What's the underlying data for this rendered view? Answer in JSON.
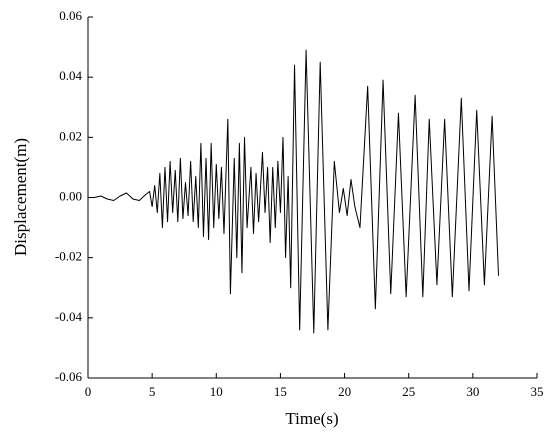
{
  "chart_data": {
    "type": "line",
    "xlabel": "Time(s)",
    "ylabel": "Displacement(m)",
    "xlim": [
      0,
      35
    ],
    "xticks": [
      0,
      5,
      10,
      15,
      20,
      25,
      30,
      35
    ],
    "ylim": [
      -0.06,
      0.06
    ],
    "yticks": [
      -0.06,
      -0.04,
      -0.02,
      {
        "value": 0,
        "label": "0.00"
      },
      0.02,
      0.04,
      0.06
    ],
    "series": [
      {
        "color": "#000000",
        "x": [
          0,
          0.5,
          1,
          1.5,
          2,
          2.5,
          3,
          3.5,
          4,
          4.5,
          4.8,
          5.0,
          5.2,
          5.4,
          5.6,
          5.8,
          6.0,
          6.2,
          6.4,
          6.6,
          6.8,
          7.0,
          7.2,
          7.4,
          7.6,
          7.8,
          8.0,
          8.2,
          8.4,
          8.6,
          8.8,
          9.0,
          9.2,
          9.4,
          9.6,
          9.8,
          10.0,
          10.2,
          10.4,
          10.6,
          10.9,
          11.1,
          11.4,
          11.6,
          11.8,
          12.0,
          12.2,
          12.4,
          12.7,
          12.9,
          13.1,
          13.3,
          13.6,
          13.8,
          14.0,
          14.2,
          14.4,
          14.6,
          14.8,
          15.0,
          15.2,
          15.4,
          15.6,
          15.8,
          16.1,
          16.5,
          17.0,
          17.6,
          18.1,
          18.7,
          19.2,
          19.6,
          19.9,
          20.2,
          20.5,
          20.8,
          21.2,
          21.8,
          22.4,
          23.0,
          23.6,
          24.2,
          24.8,
          25.5,
          26.1,
          26.6,
          27.2,
          27.8,
          28.4,
          29.1,
          29.7,
          30.3,
          30.9,
          31.5,
          32.0
        ],
        "values": [
          0,
          0,
          0.0005,
          -0.0005,
          -0.001,
          0.0005,
          0.0015,
          -0.0005,
          -0.001,
          0.001,
          0.002,
          -0.003,
          0.004,
          -0.005,
          0.008,
          -0.01,
          0.01,
          -0.008,
          0.012,
          -0.005,
          0.009,
          -0.008,
          0.013,
          -0.007,
          0.005,
          -0.006,
          0.012,
          -0.008,
          0.007,
          -0.01,
          0.018,
          -0.013,
          0.013,
          -0.014,
          0.018,
          -0.01,
          0.011,
          -0.007,
          0.01,
          -0.012,
          0.026,
          -0.032,
          0.013,
          -0.02,
          0.018,
          -0.025,
          0.02,
          -0.01,
          0.01,
          -0.012,
          0.008,
          -0.008,
          0.015,
          -0.005,
          0.01,
          -0.015,
          0.01,
          -0.01,
          0.012,
          -0.005,
          0.02,
          -0.02,
          0.007,
          -0.03,
          0.044,
          -0.044,
          0.049,
          -0.045,
          0.045,
          -0.044,
          0.012,
          -0.005,
          0.003,
          -0.006,
          0.006,
          -0.003,
          -0.01,
          0.037,
          -0.037,
          0.039,
          -0.032,
          0.028,
          -0.033,
          0.034,
          -0.033,
          0.026,
          -0.029,
          0.026,
          -0.033,
          0.033,
          -0.031,
          0.029,
          -0.029,
          0.027,
          -0.026
        ]
      }
    ]
  }
}
